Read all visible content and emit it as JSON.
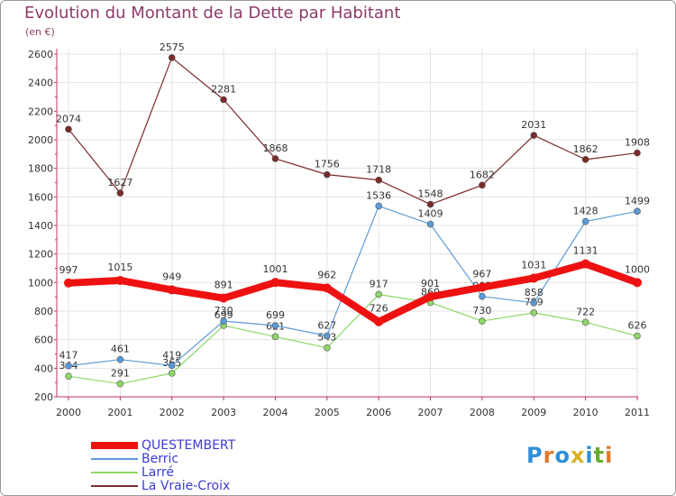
{
  "header": {
    "title": "Evolution du Montant de la Dette par Habitant",
    "subtitle": "(en €)"
  },
  "logo": {
    "text": "Proxiti",
    "letters": [
      "P",
      "r",
      "o",
      "x",
      "i",
      "t",
      "i"
    ],
    "colors": [
      "#2e8fd6",
      "#e0782a",
      "#2e8fd6",
      "#d9b21e",
      "#2e8fd6",
      "#6aab2d",
      "#e0782a"
    ]
  },
  "chart_data": {
    "type": "line",
    "title": "Evolution du Montant de la Dette par Habitant",
    "ylabel": "(en €)",
    "ylim": [
      200,
      2600
    ],
    "yticks": [
      200,
      400,
      600,
      800,
      1000,
      1200,
      1400,
      1600,
      1800,
      2000,
      2200,
      2400,
      2600
    ],
    "grid": true,
    "legend_position": "bottom-left",
    "x": [
      "2000",
      "2001",
      "2002",
      "2003",
      "2004",
      "2005",
      "2006",
      "2007",
      "2008",
      "2009",
      "2010",
      "2011"
    ],
    "series": [
      {
        "name": "La Vraie-Croix",
        "color": "#7a2a2a",
        "values": [
          2074,
          1627,
          2575,
          2281,
          1868,
          1756,
          1718,
          1548,
          1682,
          2031,
          1862,
          1908
        ]
      },
      {
        "name": "Larré",
        "color": "#8fd66a",
        "values": [
          344,
          291,
          365,
          699,
          621,
          543,
          917,
          860,
          730,
          789,
          722,
          626
        ]
      },
      {
        "name": "Berric",
        "color": "#5b9bd5",
        "values": [
          417,
          461,
          419,
          730,
          699,
          627,
          1536,
          1409,
          903,
          858,
          1428,
          1499
        ]
      },
      {
        "name": "QUESTEMBERT",
        "color": "#ee1111",
        "values": [
          997,
          1015,
          949,
          891,
          1001,
          962,
          726,
          901,
          967,
          1031,
          1131,
          1000
        ]
      }
    ]
  }
}
